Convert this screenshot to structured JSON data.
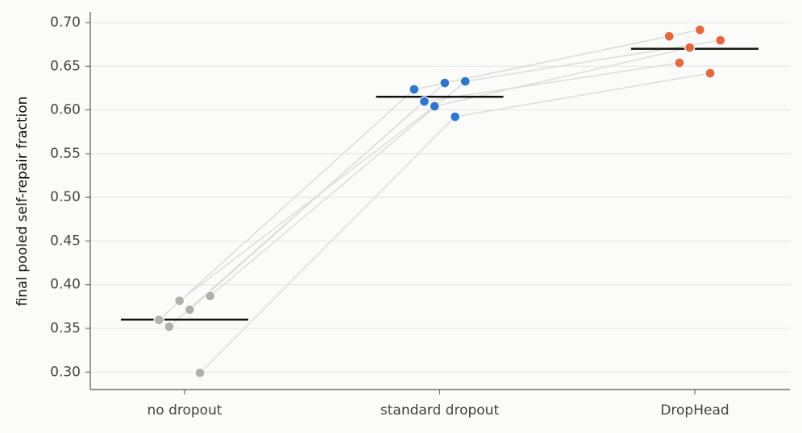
{
  "chart_data": {
    "type": "paired-strip",
    "ylabel": "final pooled self-repair fraction",
    "categories": [
      "no dropout",
      "standard dropout",
      "DropHead"
    ],
    "colors": [
      "#b2b0a8",
      "#2e75d3",
      "#e8663c"
    ],
    "values": [
      [
        0.3597,
        0.352,
        0.3816,
        0.3714,
        0.2991,
        0.3871
      ],
      [
        0.6235,
        0.6097,
        0.6041,
        0.6309,
        0.5922,
        0.6327
      ],
      [
        0.6843,
        0.6539,
        0.6714,
        0.6917,
        0.642,
        0.6797
      ]
    ],
    "means": [
      0.36,
      0.615,
      0.67
    ],
    "ylim": [
      0.28,
      0.712
    ],
    "yticks": [
      {
        "value": 0.3,
        "label": "0.30"
      },
      0.35,
      {
        "value": 0.4,
        "label": "0.40"
      },
      0.45,
      {
        "value": 0.5,
        "label": "0.50"
      },
      0.55,
      {
        "value": 0.6,
        "label": "0.60"
      },
      0.65,
      {
        "value": 0.7,
        "label": "0.70"
      }
    ],
    "grid": true
  }
}
